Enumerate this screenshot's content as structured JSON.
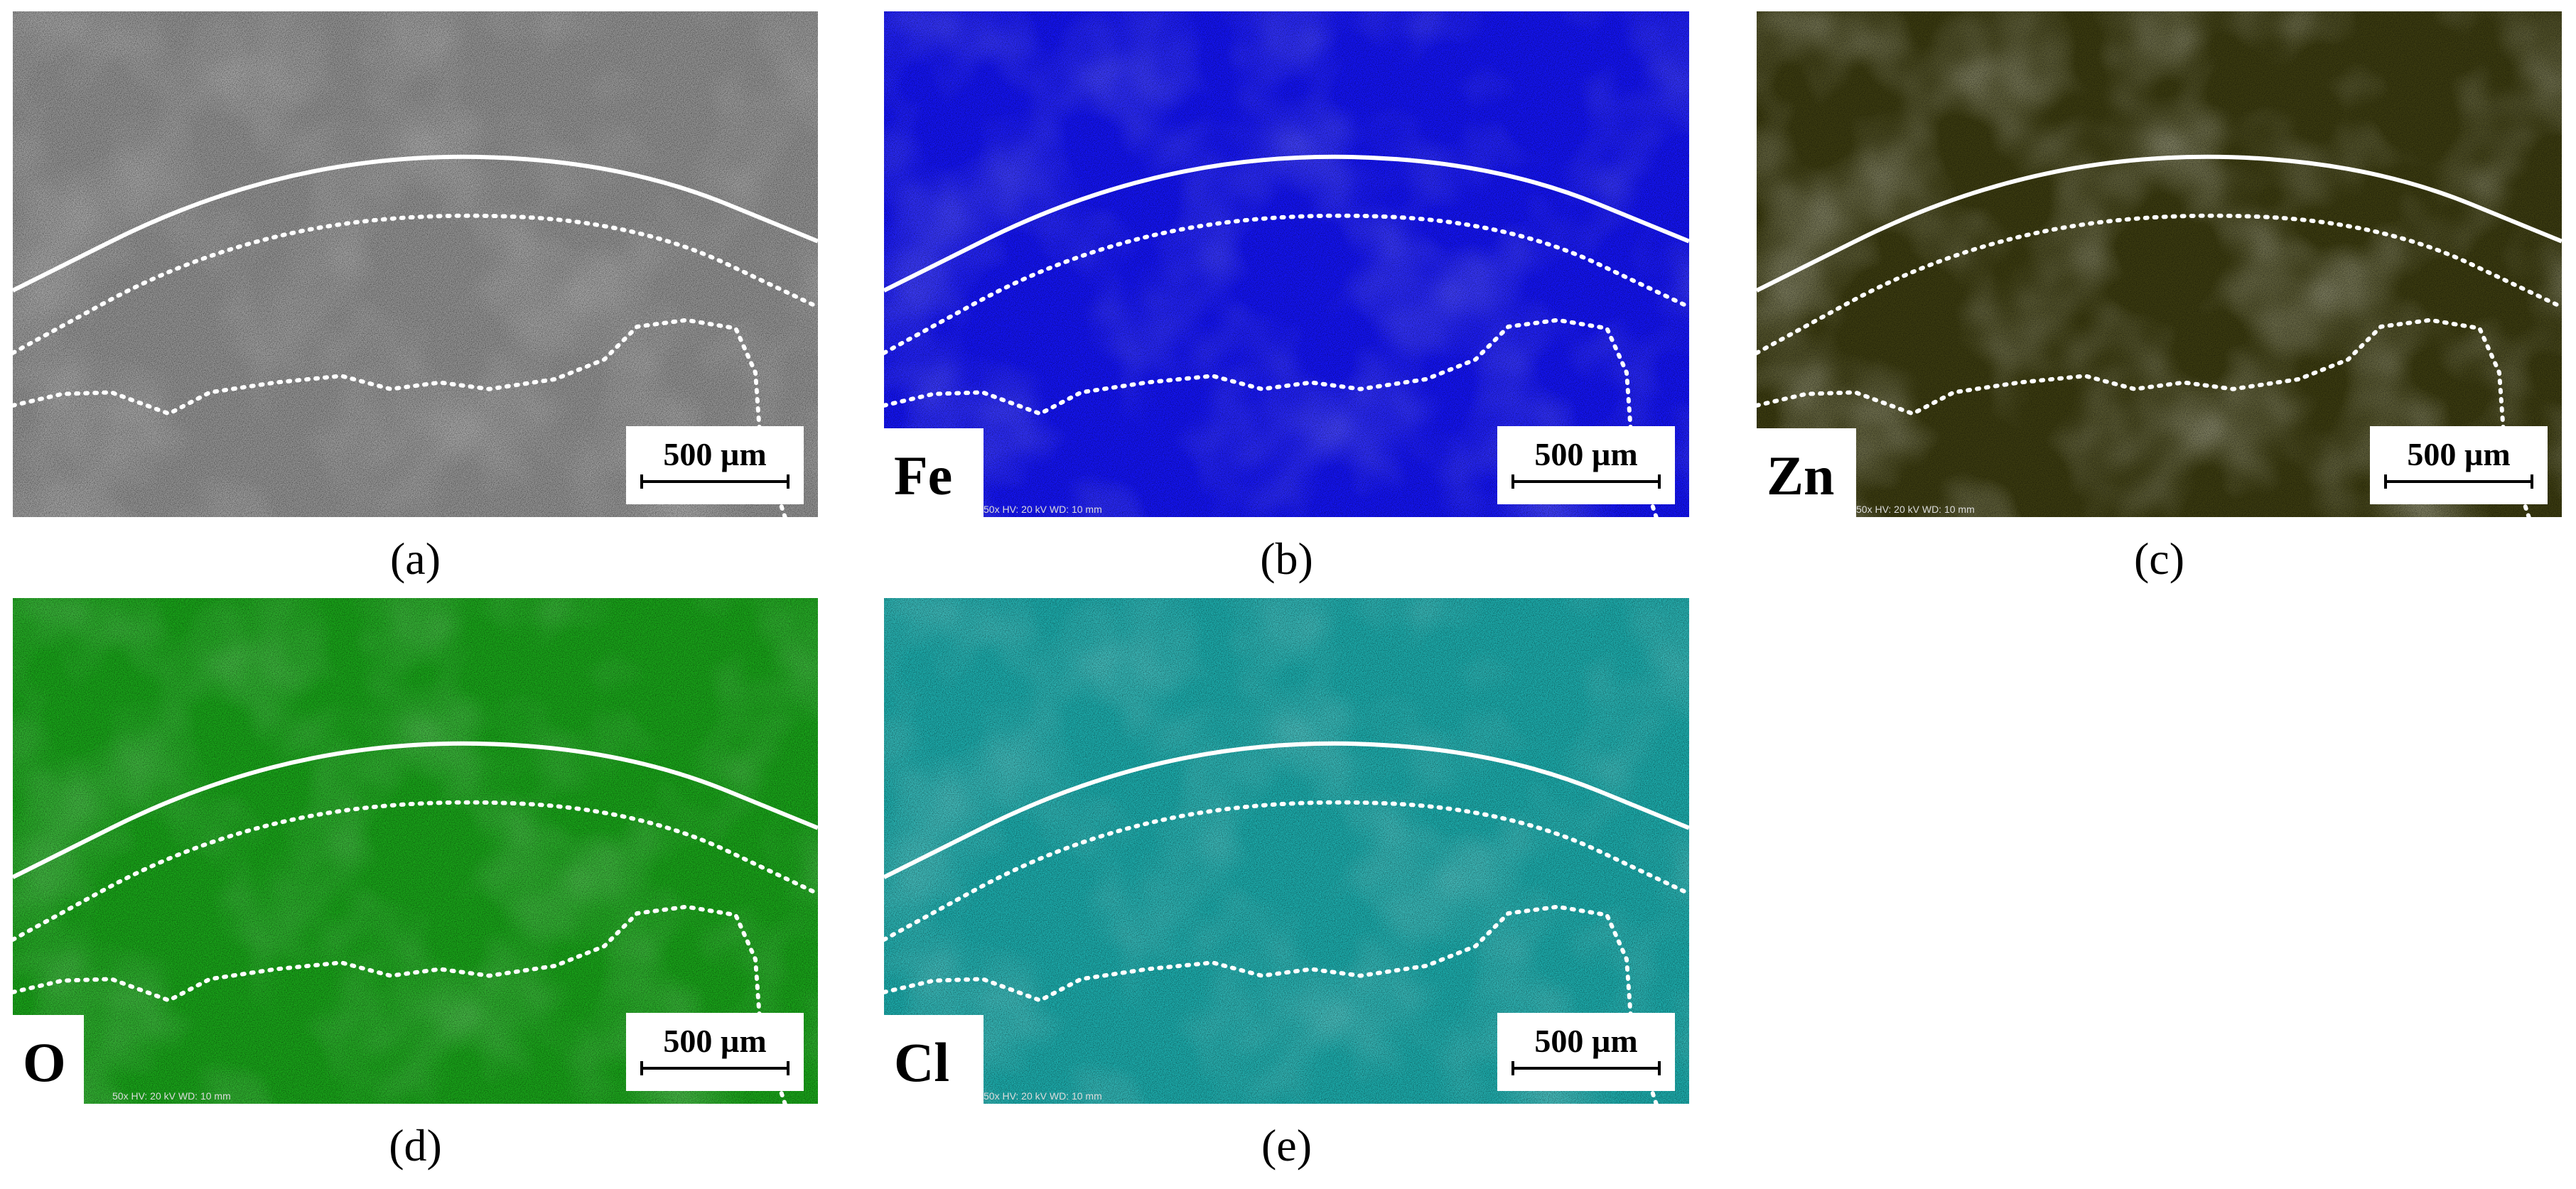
{
  "figure": {
    "scale_bar": "500 µm",
    "info_strip": "50x   HV: 20 kV   WD: 10 mm",
    "panels": [
      {
        "label": "(a)",
        "color": "#8f8f8f"
      },
      {
        "label": "(b)",
        "element": "Fe",
        "color": "#1414f0"
      },
      {
        "label": "(c)",
        "element": "Zn",
        "color": "#3a3a10"
      },
      {
        "label": "(d)",
        "element": "O",
        "color": "#19a019"
      },
      {
        "label": "(e)",
        "element": "Cl",
        "color": "#1ca8a8"
      }
    ]
  }
}
